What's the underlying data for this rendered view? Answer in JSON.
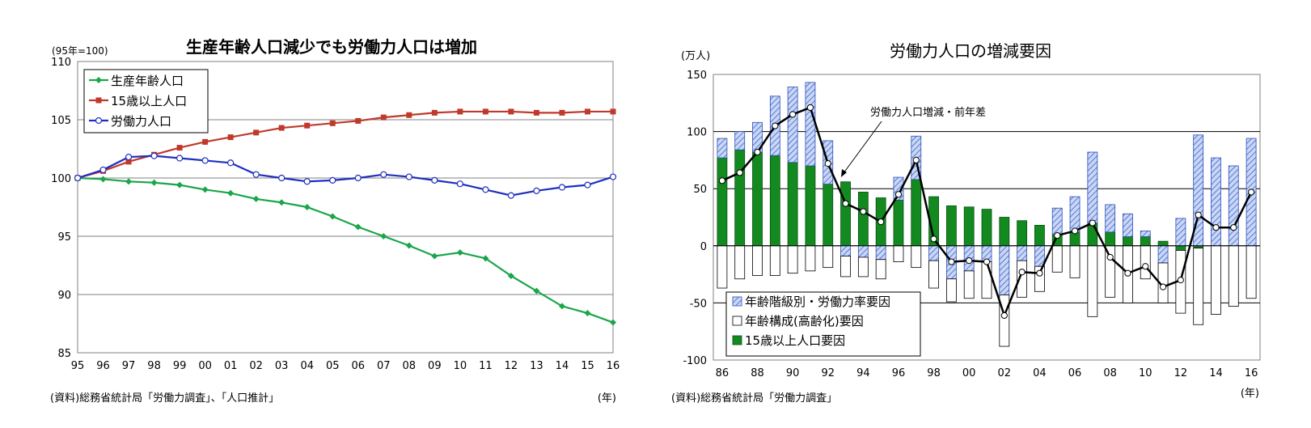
{
  "chart_data": [
    {
      "type": "line",
      "title": "生産年齢人口減少でも労働力人口は増加",
      "unit_label": "(95年=100)",
      "x_unit_label": "(年)",
      "source": "(資料)総務省統計局「労働力調査」、「人口推計」",
      "categories": [
        "95",
        "96",
        "97",
        "98",
        "99",
        "00",
        "01",
        "02",
        "03",
        "04",
        "05",
        "06",
        "07",
        "08",
        "09",
        "10",
        "11",
        "12",
        "13",
        "14",
        "15",
        "16"
      ],
      "ylim": [
        85,
        110
      ],
      "yticks": [
        "85",
        "90",
        "95",
        "100",
        "105",
        "110"
      ],
      "grid": true,
      "legend_position": "top-left",
      "series": [
        {
          "name": "生産年齢人口",
          "color": "#1aa64a",
          "marker": "diamond",
          "values": [
            100,
            99.9,
            99.7,
            99.6,
            99.4,
            99.0,
            98.7,
            98.2,
            97.9,
            97.5,
            96.7,
            95.8,
            95.0,
            94.2,
            93.3,
            93.6,
            93.1,
            91.6,
            90.3,
            89.0,
            88.4,
            87.6
          ]
        },
        {
          "name": "15歳以上人口",
          "color": "#c0392b",
          "marker": "square",
          "values": [
            100,
            100.6,
            101.4,
            102.0,
            102.6,
            103.1,
            103.5,
            103.9,
            104.3,
            104.5,
            104.7,
            104.9,
            105.2,
            105.4,
            105.6,
            105.7,
            105.7,
            105.7,
            105.6,
            105.6,
            105.7,
            105.7
          ]
        },
        {
          "name": "労働力人口",
          "color": "#1f2fbf",
          "marker": "circle",
          "values": [
            100,
            100.7,
            101.8,
            101.9,
            101.7,
            101.5,
            101.3,
            100.3,
            100.0,
            99.7,
            99.8,
            100.0,
            100.3,
            100.1,
            99.8,
            99.5,
            99.0,
            98.5,
            98.9,
            99.2,
            99.4,
            100.1
          ]
        }
      ]
    },
    {
      "type": "bar",
      "title": "労働力人口の増減要因",
      "unit_label": "(万人)",
      "x_unit_label": "(年)",
      "source": "(資料)総務省統計局「労働力調査」",
      "x_tick_labels": [
        "86",
        "88",
        "90",
        "92",
        "94",
        "96",
        "98",
        "00",
        "02",
        "04",
        "06",
        "08",
        "10",
        "12",
        "14",
        "16"
      ],
      "years": [
        "86",
        "87",
        "88",
        "89",
        "90",
        "91",
        "92",
        "93",
        "94",
        "95",
        "96",
        "97",
        "98",
        "99",
        "00",
        "01",
        "02",
        "03",
        "04",
        "05",
        "06",
        "07",
        "08",
        "09",
        "10",
        "11",
        "12",
        "13",
        "14",
        "15",
        "16"
      ],
      "ylim": [
        -100,
        150
      ],
      "yticks": [
        "-100",
        "-50",
        "0",
        "50",
        "100",
        "150"
      ],
      "legend_position": "bottom-left",
      "annotation": "労働力人口増減・前年差",
      "series": [
        {
          "name": "15歳以上人口要因",
          "color": "#138a1f",
          "values": [
            77,
            84,
            82,
            79,
            73,
            70,
            54,
            56,
            47,
            42,
            40,
            58,
            43,
            35,
            34,
            32,
            25,
            22,
            18,
            10,
            12,
            20,
            12,
            8,
            8,
            4,
            -4,
            -2,
            0,
            0,
            0
          ]
        },
        {
          "name": "年齢構成(高齢化)要因",
          "color": "#ffffff",
          "values": [
            -37,
            -29,
            -26,
            -26,
            -24,
            -22,
            -19,
            -18,
            -17,
            -17,
            -14,
            -19,
            -24,
            -20,
            -24,
            -32,
            -45,
            -32,
            -22,
            -23,
            -28,
            -62,
            -45,
            -50,
            -29,
            -35,
            -55,
            -67,
            -60,
            -53,
            -46
          ]
        },
        {
          "name": "年齢階級別・労働力率要因",
          "color": "#8aa8e8",
          "values": [
            17,
            16,
            26,
            52,
            66,
            73,
            38,
            -9,
            -10,
            -12,
            20,
            38,
            -13,
            -29,
            -22,
            -14,
            -43,
            -13,
            -18,
            23,
            31,
            62,
            24,
            20,
            5,
            -15,
            24,
            97,
            77,
            70,
            94
          ]
        },
        {
          "name": "労働力人口増減・前年差",
          "values": [
            57,
            64,
            82,
            105,
            115,
            121,
            72,
            37,
            30,
            21,
            45,
            75,
            6,
            -14,
            -13,
            -14,
            -61,
            -23,
            -24,
            9,
            13,
            20,
            -10,
            -24,
            -18,
            -36,
            -30,
            27,
            16,
            16,
            47
          ]
        }
      ]
    }
  ]
}
